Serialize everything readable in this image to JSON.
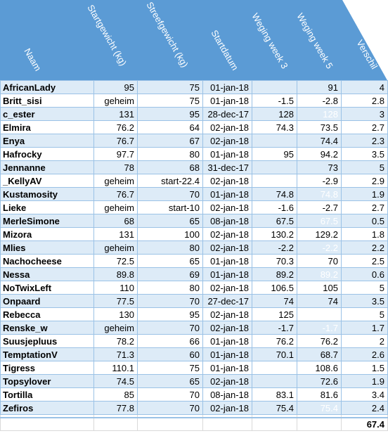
{
  "headers": [
    "Naam",
    "Startgewicht (kg)",
    "Streefgewicht (kg)",
    "Startdatum",
    "Weging week 3",
    "Weging week 5",
    "Verschil"
  ],
  "rows": [
    {
      "naam": "AfricanLady",
      "start": "95",
      "streef": "75",
      "datum": "01-jan-18",
      "w3": "",
      "w5": "91",
      "verschil": "4"
    },
    {
      "naam": "Britt_sisi",
      "start": "geheim",
      "streef": "75",
      "datum": "01-jan-18",
      "w3": "-1.5",
      "w5": "-2.8",
      "verschil": "2.8"
    },
    {
      "naam": "c_ester",
      "start": "131",
      "streef": "95",
      "datum": "28-dec-17",
      "w3": "128",
      "w5": "128",
      "verschil": "3"
    },
    {
      "naam": "Elmira",
      "start": "76.2",
      "streef": "64",
      "datum": "02-jan-18",
      "w3": "74.3",
      "w5": "73.5",
      "verschil": "2.7"
    },
    {
      "naam": "Enya",
      "start": "76.7",
      "streef": "67",
      "datum": "02-jan-18",
      "w3": "",
      "w5": "74.4",
      "verschil": "2.3"
    },
    {
      "naam": "Hafrocky",
      "start": "97.7",
      "streef": "80",
      "datum": "01-jan-18",
      "w3": "95",
      "w5": "94.2",
      "verschil": "3.5"
    },
    {
      "naam": "Jennanne",
      "start": "78",
      "streef": "68",
      "datum": "31-dec-17",
      "w3": "",
      "w5": "73",
      "verschil": "5"
    },
    {
      "naam": "_KellyAV",
      "start": "geheim",
      "streef": "start-22.4",
      "datum": "02-jan-18",
      "w3": "",
      "w5": "-2.9",
      "verschil": "2.9"
    },
    {
      "naam": "Kustamosity",
      "start": "76.7",
      "streef": "70",
      "datum": "01-jan-18",
      "w3": "74.8",
      "w5": "74.8",
      "verschil": "1.9"
    },
    {
      "naam": "Lieke",
      "start": "geheim",
      "streef": "start-10",
      "datum": "02-jan-18",
      "w3": "-1.6",
      "w5": "-2.7",
      "verschil": "2.7"
    },
    {
      "naam": "MerleSimone",
      "start": "68",
      "streef": "65",
      "datum": "08-jan-18",
      "w3": "67.5",
      "w5": "67.5",
      "verschil": "0.5"
    },
    {
      "naam": "Mizora",
      "start": "131",
      "streef": "100",
      "datum": "02-jan-18",
      "w3": "130.2",
      "w5": "129.2",
      "verschil": "1.8"
    },
    {
      "naam": "Mlies",
      "start": "geheim",
      "streef": "80",
      "datum": "02-jan-18",
      "w3": "-2.2",
      "w5": "-2.2",
      "verschil": "2.2"
    },
    {
      "naam": "Nachocheese",
      "start": "72.5",
      "streef": "65",
      "datum": "01-jan-18",
      "w3": "70.3",
      "w5": "70",
      "verschil": "2.5"
    },
    {
      "naam": "Nessa",
      "start": "89.8",
      "streef": "69",
      "datum": "01-jan-18",
      "w3": "89.2",
      "w5": "89.2",
      "verschil": "0.6"
    },
    {
      "naam": "NoTwixLeft",
      "start": "110",
      "streef": "80",
      "datum": "02-jan-18",
      "w3": "106.5",
      "w5": "105",
      "verschil": "5"
    },
    {
      "naam": "Onpaard",
      "start": "77.5",
      "streef": "70",
      "datum": "27-dec-17",
      "w3": "74",
      "w5": "74",
      "verschil": "3.5"
    },
    {
      "naam": "Rebecca",
      "start": "130",
      "streef": "95",
      "datum": "02-jan-18",
      "w3": "125",
      "w5": "",
      "verschil": "5"
    },
    {
      "naam": "Renske_w",
      "start": "geheim",
      "streef": "70",
      "datum": "02-jan-18",
      "w3": "-1.7",
      "w5": "-1.7",
      "verschil": "1.7"
    },
    {
      "naam": "Suusjepluus",
      "start": "78.2",
      "streef": "66",
      "datum": "01-jan-18",
      "w3": "76.2",
      "w5": "76.2",
      "verschil": "2"
    },
    {
      "naam": "TemptationV",
      "start": "71.3",
      "streef": "60",
      "datum": "01-jan-18",
      "w3": "70.1",
      "w5": "68.7",
      "verschil": "2.6"
    },
    {
      "naam": "Tigress",
      "start": "110.1",
      "streef": "75",
      "datum": "01-jan-18",
      "w3": "",
      "w5": "108.6",
      "verschil": "1.5"
    },
    {
      "naam": "Topsylover",
      "start": "74.5",
      "streef": "65",
      "datum": "02-jan-18",
      "w3": "",
      "w5": "72.6",
      "verschil": "1.9"
    },
    {
      "naam": "Tortilla",
      "start": "85",
      "streef": "70",
      "datum": "08-jan-18",
      "w3": "83.1",
      "w5": "81.6",
      "verschil": "3.4"
    },
    {
      "naam": "Zefiros",
      "start": "77.8",
      "streef": "70",
      "datum": "02-jan-18",
      "w3": "75.4",
      "w5": "75.4",
      "verschil": "2.4"
    }
  ],
  "hidden_w5_rows": [
    2,
    8,
    10,
    12,
    14,
    18,
    24
  ],
  "total": "67.4",
  "colors": {
    "header_bg": "#5b9bd5",
    "header_text": "#ffffff",
    "band": "#ddebf7",
    "border": "#9bc2e6"
  }
}
